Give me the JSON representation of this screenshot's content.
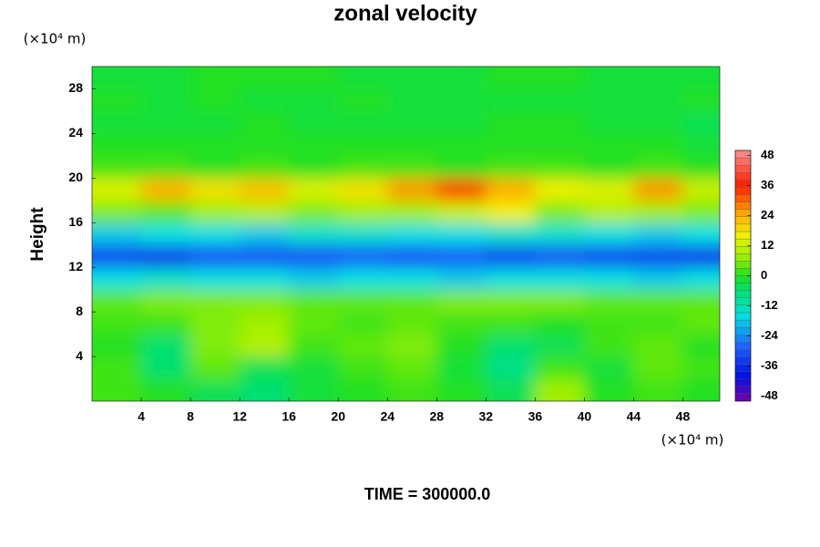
{
  "chart_data": {
    "type": "heatmap",
    "title": "zonal velocity",
    "y_label": "Height",
    "y_unit_label": "(×10⁴ m)",
    "x_unit_label": "(×10⁴ m)",
    "footer": "TIME = 300000.0",
    "x": [
      2,
      6,
      10,
      14,
      18,
      22,
      26,
      30,
      34,
      38,
      42,
      46,
      50
    ],
    "y": [
      1,
      3,
      5,
      7,
      9,
      11,
      13,
      15,
      17,
      19,
      21,
      23,
      25,
      27,
      29
    ],
    "z": [
      [
        2,
        0,
        -4,
        -6,
        -2,
        0,
        2,
        0,
        -4,
        8,
        0,
        2,
        0
      ],
      [
        2,
        -6,
        4,
        -4,
        -2,
        2,
        4,
        -2,
        -8,
        2,
        -2,
        4,
        2
      ],
      [
        0,
        -6,
        6,
        10,
        2,
        4,
        6,
        0,
        -6,
        -4,
        2,
        4,
        0
      ],
      [
        2,
        2,
        6,
        8,
        4,
        2,
        4,
        2,
        2,
        0,
        2,
        2,
        4
      ],
      [
        4,
        6,
        6,
        6,
        4,
        4,
        4,
        6,
        6,
        6,
        4,
        4,
        4
      ],
      [
        -16,
        -14,
        -16,
        -16,
        -18,
        -16,
        -16,
        -18,
        -16,
        -16,
        -16,
        -18,
        -16
      ],
      [
        -34,
        -36,
        -32,
        -32,
        -32,
        -30,
        -32,
        -30,
        -34,
        -32,
        -34,
        -34,
        -36
      ],
      [
        -18,
        -16,
        -16,
        -18,
        -14,
        -14,
        -16,
        -16,
        -14,
        -14,
        -16,
        -18,
        -16
      ],
      [
        6,
        4,
        8,
        10,
        6,
        8,
        8,
        12,
        16,
        6,
        10,
        8,
        6
      ],
      [
        14,
        24,
        18,
        22,
        14,
        18,
        26,
        34,
        24,
        16,
        14,
        26,
        12
      ],
      [
        2,
        2,
        0,
        2,
        0,
        2,
        2,
        0,
        2,
        2,
        0,
        2,
        0
      ],
      [
        0,
        0,
        0,
        0,
        0,
        0,
        0,
        0,
        0,
        0,
        0,
        0,
        -2
      ],
      [
        -2,
        -2,
        -2,
        0,
        -2,
        -2,
        -2,
        -2,
        0,
        0,
        -2,
        -2,
        -4
      ],
      [
        0,
        -2,
        0,
        -2,
        -2,
        0,
        -2,
        -2,
        -2,
        -2,
        -2,
        -2,
        0
      ],
      [
        -2,
        -2,
        0,
        0,
        0,
        -2,
        -2,
        -2,
        0,
        0,
        -2,
        -2,
        -2
      ]
    ],
    "xlim": [
      0,
      51
    ],
    "xticks": [
      4,
      8,
      12,
      16,
      20,
      24,
      28,
      32,
      36,
      40,
      44,
      48
    ],
    "ylim": [
      0,
      30
    ],
    "yticks": [
      4,
      8,
      12,
      16,
      20,
      24,
      28
    ],
    "clim": [
      -50,
      50
    ],
    "cticks": [
      -48,
      -36,
      -24,
      -12,
      0,
      12,
      24,
      36,
      48
    ],
    "colormap": [
      {
        "value": -50,
        "color": "#7a00b0"
      },
      {
        "value": -40,
        "color": "#0010e0"
      },
      {
        "value": -28,
        "color": "#1e64ff"
      },
      {
        "value": -16,
        "color": "#00e0e0"
      },
      {
        "value": -6,
        "color": "#00e070"
      },
      {
        "value": 0,
        "color": "#20e020"
      },
      {
        "value": 8,
        "color": "#a0f000"
      },
      {
        "value": 16,
        "color": "#f0f000"
      },
      {
        "value": 24,
        "color": "#ffb000"
      },
      {
        "value": 36,
        "color": "#ff2000"
      },
      {
        "value": 50,
        "color": "#ff9090"
      }
    ]
  }
}
